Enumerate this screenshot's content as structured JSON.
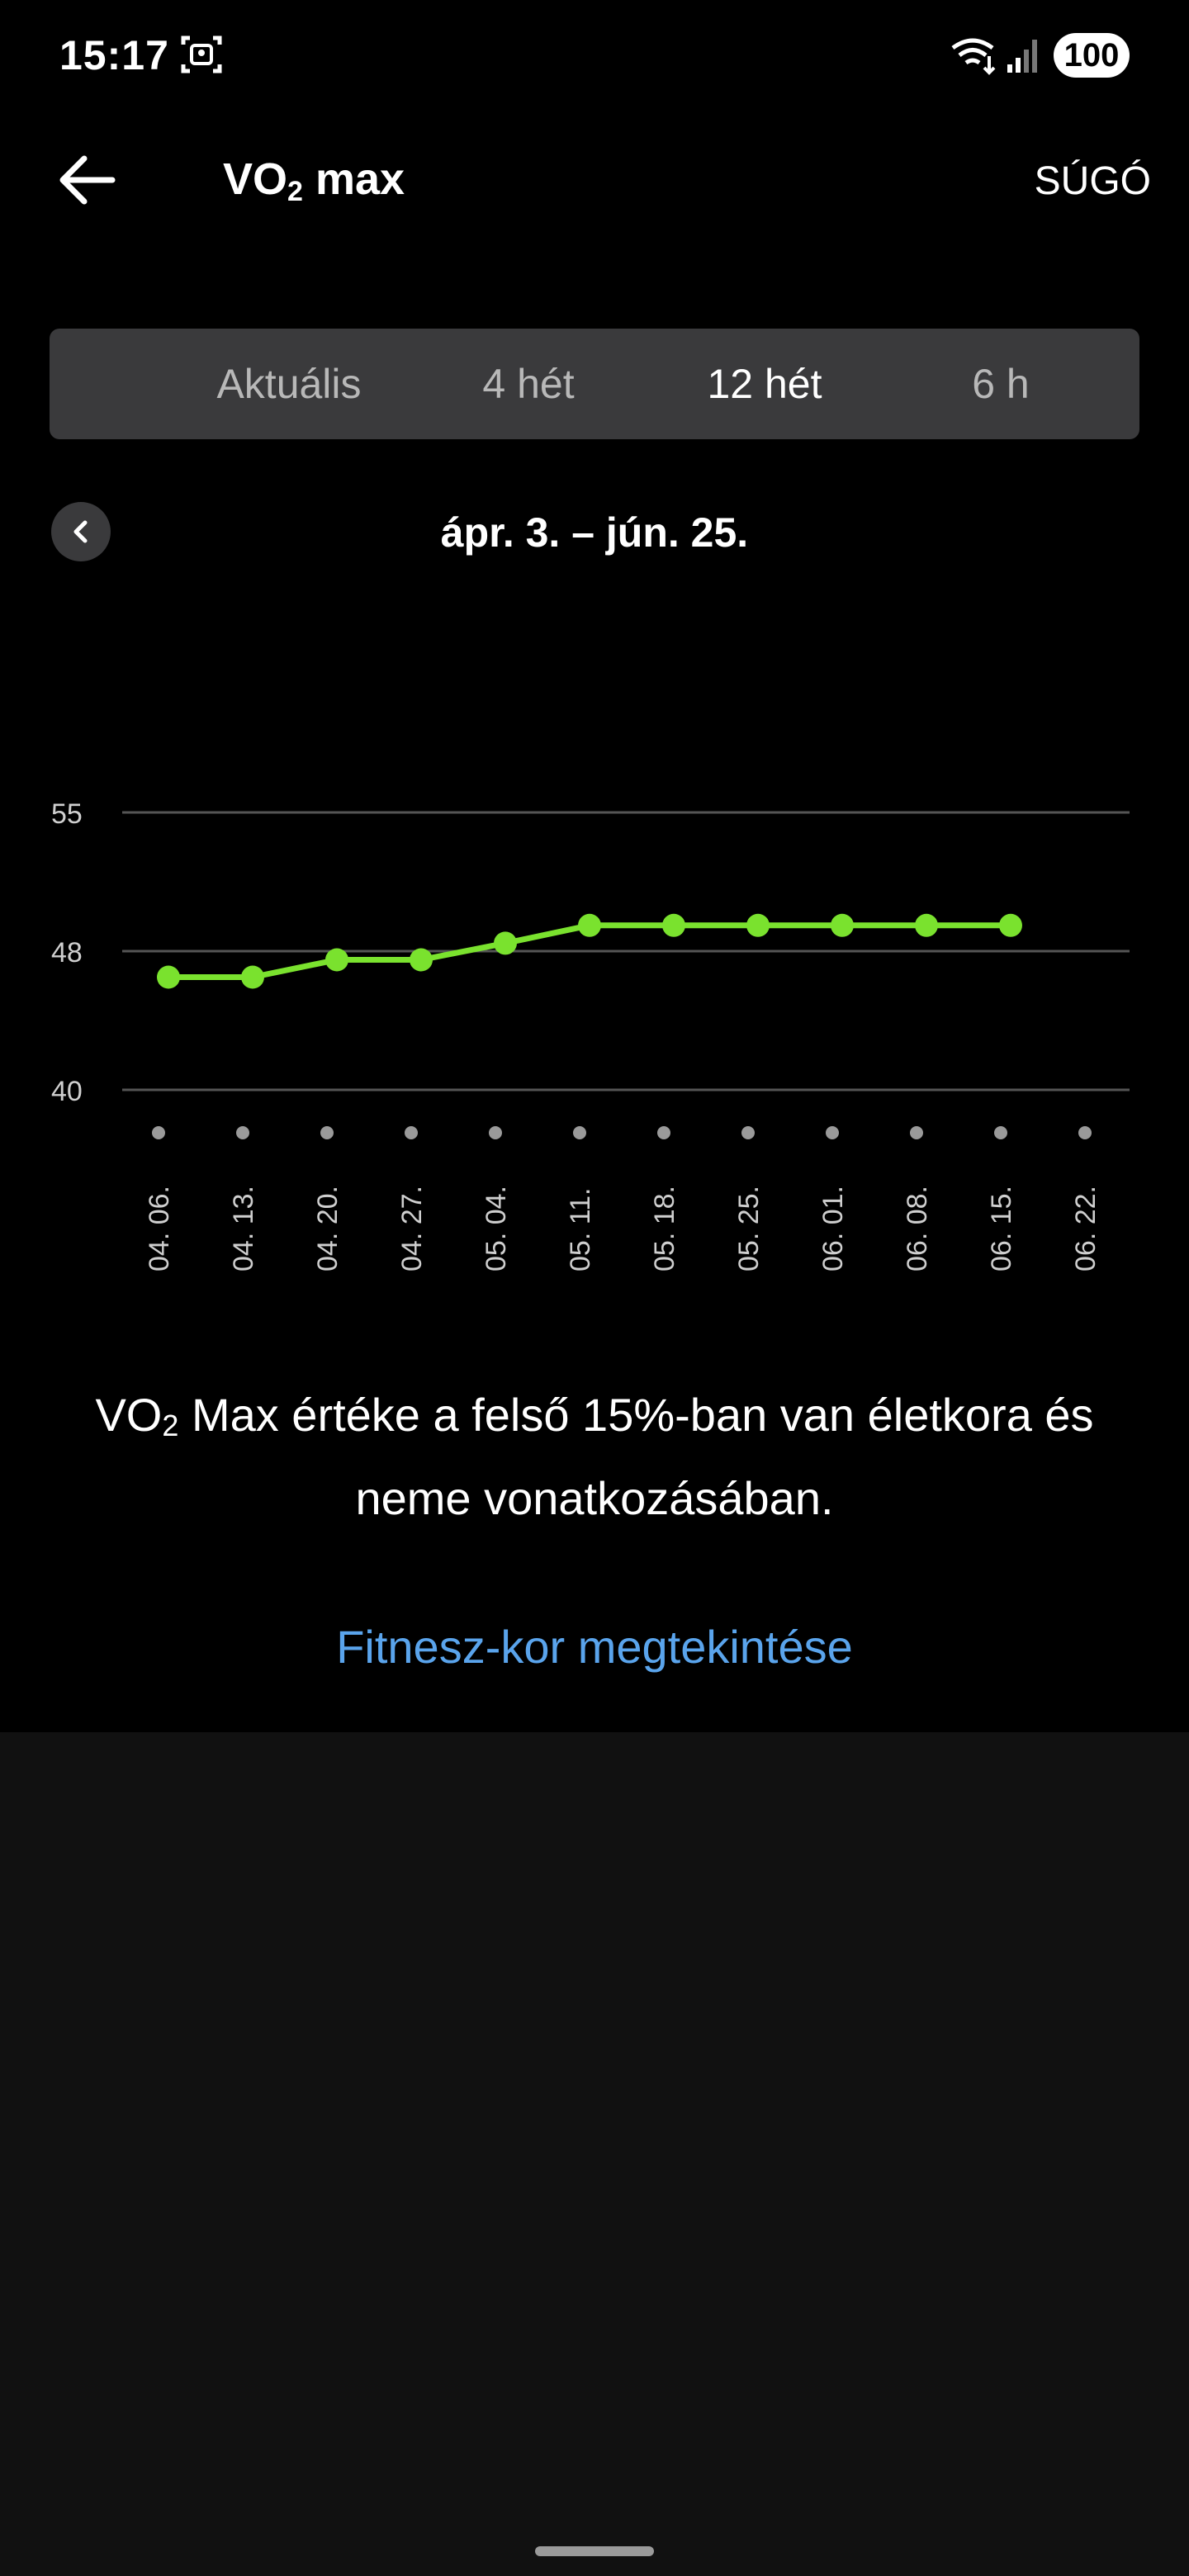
{
  "status_bar": {
    "time": "15:17",
    "battery": "100",
    "icons": [
      "screenshot-icon",
      "wifi-icon",
      "signal-icon"
    ]
  },
  "header": {
    "title_main": "VO",
    "title_sub": "2",
    "title_rest": " max",
    "help_label": "SÚGÓ",
    "back_icon": "arrow-left-icon"
  },
  "tabs": [
    {
      "label": "Aktuális",
      "active": false
    },
    {
      "label": "4 hét",
      "active": false
    },
    {
      "label": "12 hét",
      "active": true
    },
    {
      "label": "6 h",
      "active": false
    }
  ],
  "date_nav": {
    "range": "ápr. 3. – jún. 25.",
    "prev_icon": "chevron-left-icon"
  },
  "chart_data": {
    "type": "line",
    "title": "",
    "xlabel": "",
    "ylabel": "",
    "ylim": [
      40,
      55
    ],
    "y_ticks": [
      "55",
      "48",
      "40"
    ],
    "grid": true,
    "line_color": "#7ae22e",
    "categories": [
      "04. 06.",
      "04. 13.",
      "04. 20.",
      "04. 27.",
      "05. 04.",
      "05. 11.",
      "05. 18.",
      "05. 25.",
      "06. 01.",
      "06. 08.",
      "06. 15.",
      "06. 22."
    ],
    "series": [
      {
        "values": [
          46.5,
          46.5,
          47.5,
          47.5,
          48.4,
          49.3,
          49.3,
          49.3,
          49.3,
          49.3,
          49.3,
          null
        ]
      }
    ]
  },
  "message": {
    "prefix": "VO",
    "sub": "2",
    "text": " Max értéke a felső 15%-ban van életkora és neme vonatkozásában."
  },
  "link": {
    "label": "Fitnesz-kor megtekintése"
  },
  "colors": {
    "background": "#000000",
    "lower_background": "#111111",
    "accent_link": "#5aa4ec",
    "line": "#7ae22e",
    "tab_bar": "#3a3a3c"
  }
}
